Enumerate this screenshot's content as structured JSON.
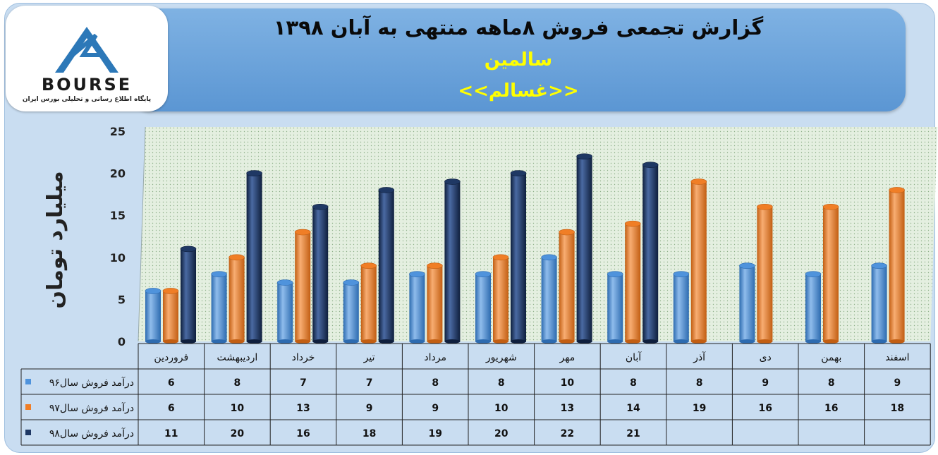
{
  "header": {
    "title": "گزارش تجمعی فروش  ۸ماهه منتهی به آبان ۱۳۹۸",
    "company": "سالمین",
    "symbol": "<<غسالم>>"
  },
  "logo": {
    "name": "BOURSE",
    "subtitle": "پایگاه اطلاع رسانی و تحلیلی بورس ایران"
  },
  "colors": {
    "series96": "#4f93dc",
    "series97": "#f07e26",
    "series98": "#1f3864",
    "grid_bg": "#dbe9d6",
    "table_bg": "#c9ddf1"
  },
  "chart_data": {
    "type": "bar",
    "ylabel": "میلیارد تومان",
    "ylim": [
      0,
      25
    ],
    "yticks": [
      "0",
      "5",
      "10",
      "15",
      "20",
      "25"
    ],
    "categories": [
      "فروردین",
      "اردیبهشت",
      "خرداد",
      "تیر",
      "مرداد",
      "شهریور",
      "مهر",
      "آبان",
      "آذر",
      "دی",
      "بهمن",
      "اسفند"
    ],
    "series": [
      {
        "name": "درآمد فروش سال۹۶",
        "values": [
          6,
          8,
          7,
          7,
          8,
          8,
          10,
          8,
          8,
          9,
          8,
          9
        ]
      },
      {
        "name": "درآمد فروش سال۹۷",
        "values": [
          6,
          10,
          13,
          9,
          9,
          10,
          13,
          14,
          19,
          16,
          16,
          18
        ]
      },
      {
        "name": "درآمد فروش سال۹۸",
        "values": [
          11,
          20,
          16,
          18,
          19,
          20,
          22,
          21,
          null,
          null,
          null,
          null
        ]
      }
    ],
    "legend": "table-left",
    "grid": false
  }
}
